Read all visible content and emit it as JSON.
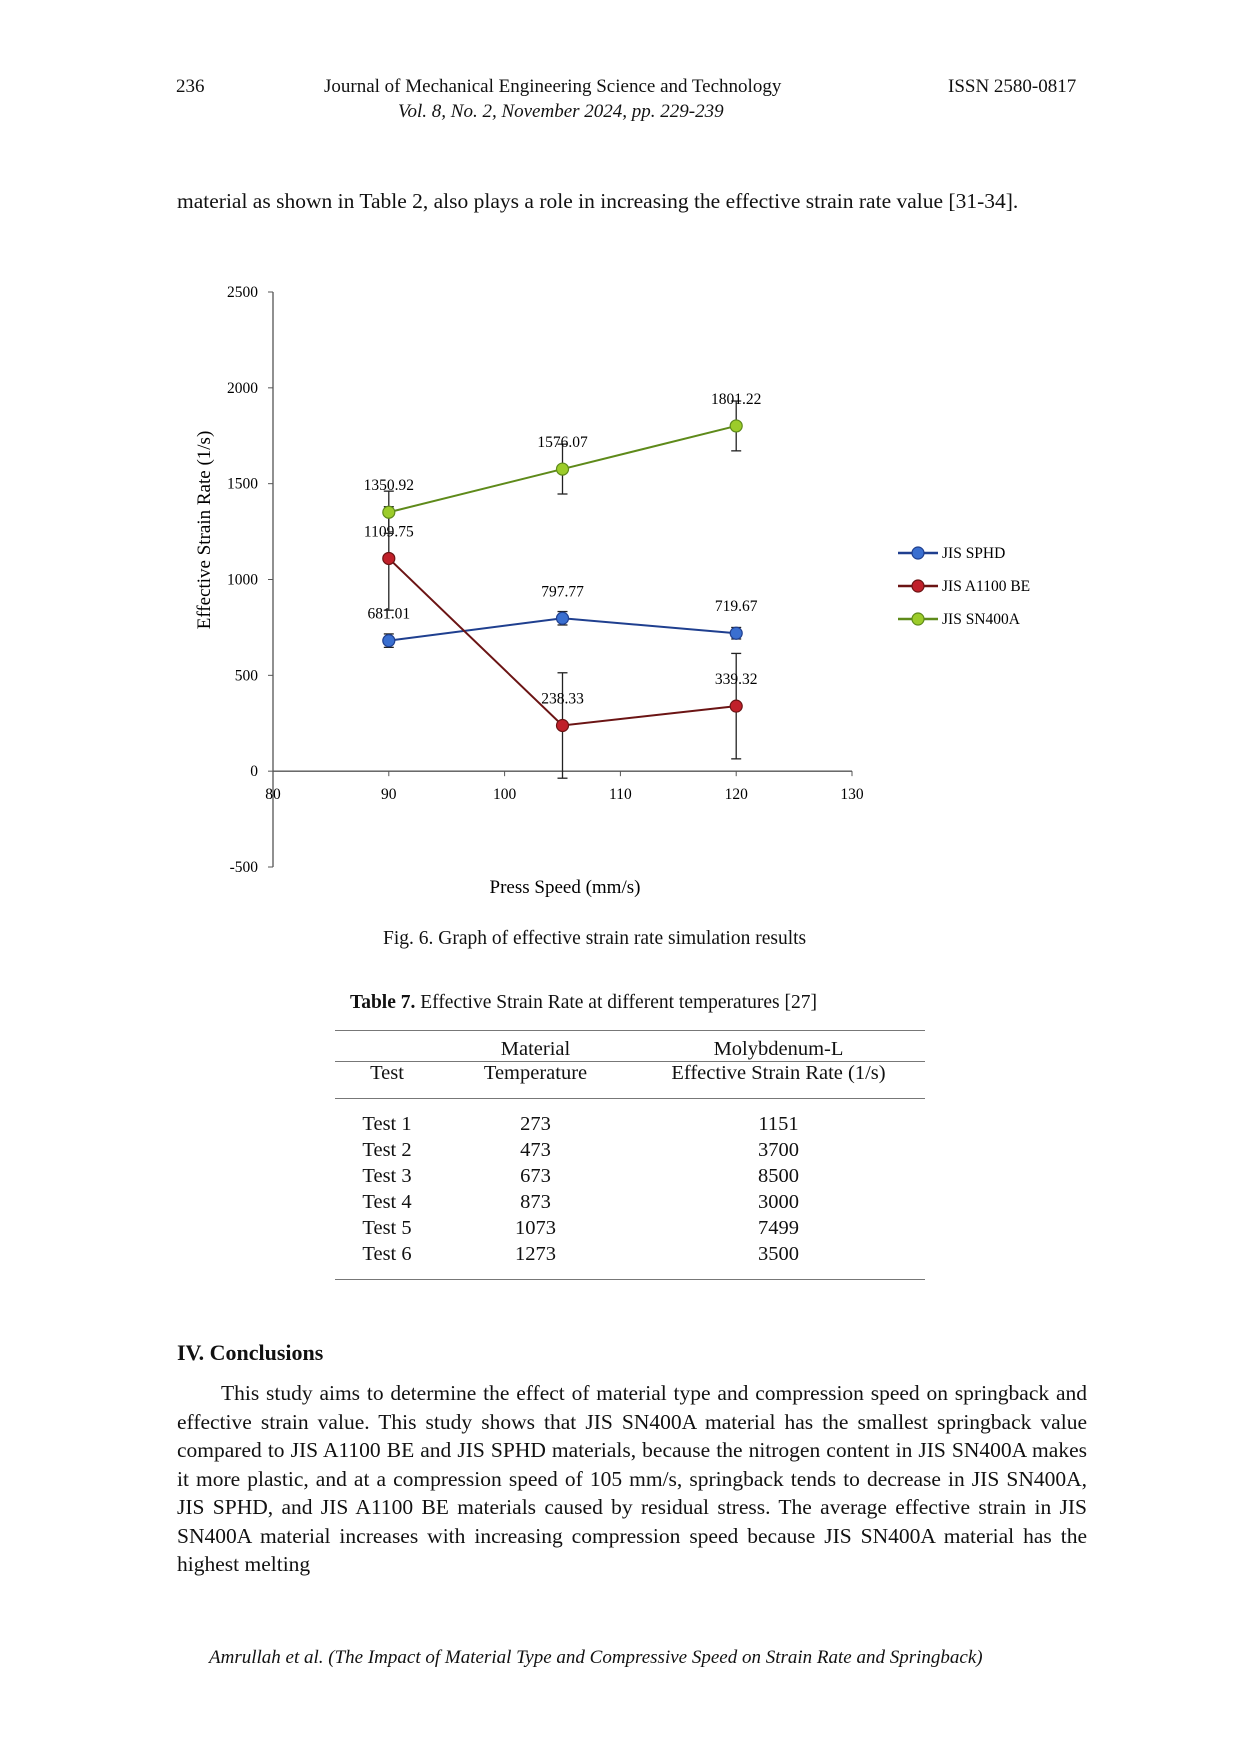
{
  "header": {
    "page_number": "236",
    "journal": "Journal of Mechanical Engineering Science and Technology",
    "volume": "Vol. 8, No. 2, November 2024, pp. 229-239",
    "issn": "ISSN 2580-0817"
  },
  "intro_text": "material as shown in Table 2, also plays a role in increasing the effective strain rate value [31-34].",
  "figure": {
    "caption": "Fig. 6. Graph of effective strain rate simulation results"
  },
  "chart_data": {
    "type": "line",
    "xlabel": "Press Speed (mm/s)",
    "ylabel": "Effective Strain Rate (1/s)",
    "xlim": [
      80,
      130
    ],
    "ylim": [
      -500,
      2500
    ],
    "x_ticks": [
      "80",
      "90",
      "100",
      "110",
      "120",
      "130"
    ],
    "y_ticks": [
      "-500",
      "0",
      "500",
      "1000",
      "1500",
      "2000",
      "2500"
    ],
    "legend_position": "right",
    "grid": false,
    "series": [
      {
        "name": "JIS SPHD",
        "color": "#1f3f8f",
        "marker": "#3a6fd0",
        "x": [
          90,
          105,
          120
        ],
        "y": [
          681.01,
          797.77,
          719.67
        ],
        "labels": [
          "681.01",
          "797.77",
          "719.67"
        ],
        "err": [
          35,
          35,
          30
        ]
      },
      {
        "name": "JIS A1100 BE",
        "color": "#6b1414",
        "marker": "#c0202a",
        "x": [
          90,
          105,
          120
        ],
        "y": [
          1109.75,
          238.33,
          339.32
        ],
        "labels": [
          "1109.75",
          "238.33",
          "339.32"
        ],
        "err": [
          270,
          275,
          275
        ]
      },
      {
        "name": "JIS SN400A",
        "color": "#5e8a1a",
        "marker": "#9ccc2a",
        "x": [
          90,
          105,
          120
        ],
        "y": [
          1350.92,
          1576.07,
          1801.22
        ],
        "labels": [
          "1350.92",
          "1576.07",
          "1801.22"
        ],
        "err": [
          110,
          130,
          130
        ]
      }
    ]
  },
  "table": {
    "caption_bold": "Table 7.",
    "caption_rest": "Effective Strain Rate at different temperatures [27]",
    "header_top": [
      "",
      "Material",
      "Molybdenum-L"
    ],
    "header_bottom": [
      "Test",
      "Temperature",
      "Effective Strain Rate (1/s)"
    ],
    "rows": [
      [
        "Test 1",
        "273",
        "1151"
      ],
      [
        "Test 2",
        "473",
        "3700"
      ],
      [
        "Test 3",
        "673",
        "8500"
      ],
      [
        "Test 4",
        "873",
        "3000"
      ],
      [
        "Test 5",
        "1073",
        "7499"
      ],
      [
        "Test 6",
        "1273",
        "3500"
      ]
    ]
  },
  "conclusions": {
    "heading": "IV. Conclusions",
    "text": "This study aims to determine the effect of material type and compression speed on springback and effective strain value. This study shows that JIS SN400A material has the smallest springback value compared to JIS A1100 BE and JIS SPHD materials, because the nitrogen content in JIS SN400A makes it more plastic, and at a compression speed of 105 mm/s, springback tends to decrease in JIS SN400A, JIS SPHD, and JIS A1100 BE materials caused by residual stress. The average effective strain in JIS SN400A material increases with increasing compression speed because JIS SN400A material has the highest melting"
  },
  "footer": "Amrullah et al. (The Impact of Material Type and Compressive Speed on Strain Rate and Springback)"
}
